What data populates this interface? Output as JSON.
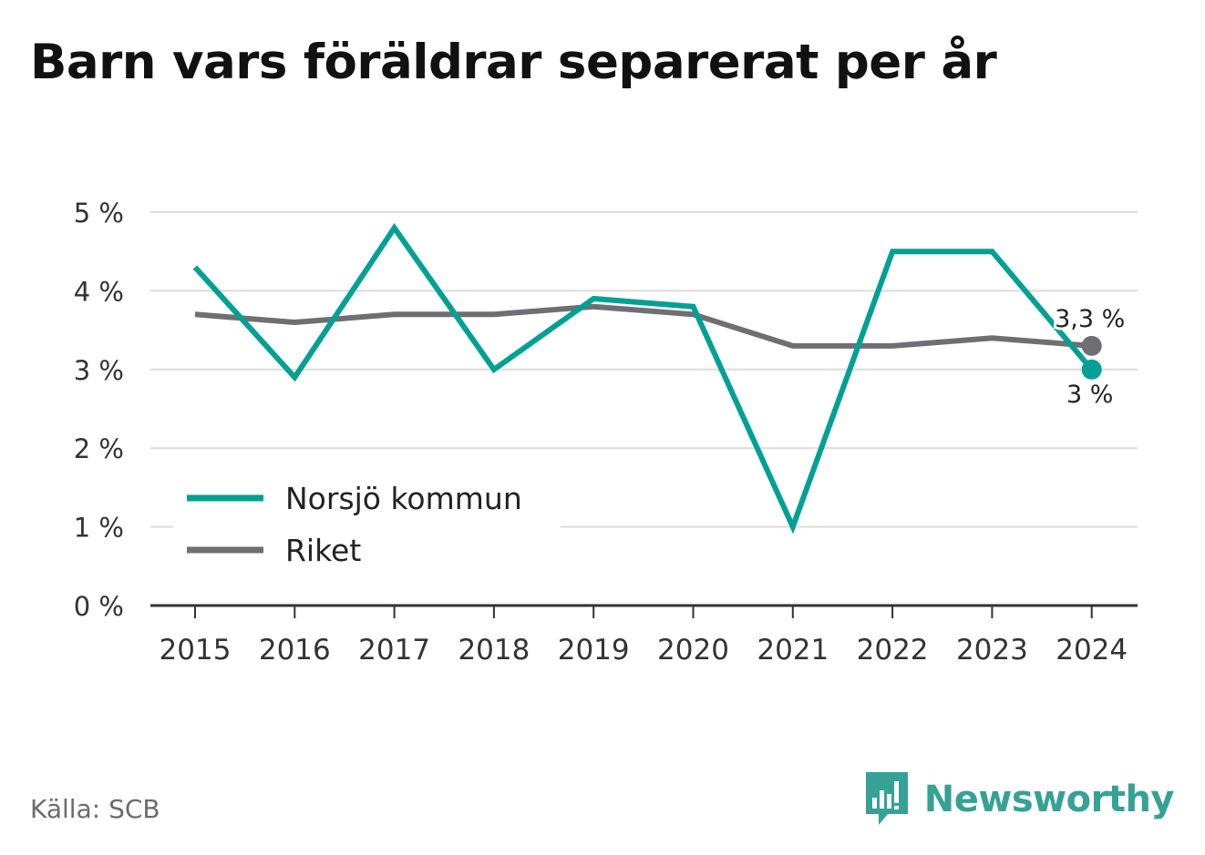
{
  "chart_data": {
    "type": "line",
    "title": "Barn vars föräldrar separerat per år",
    "x": [
      "2015",
      "2016",
      "2017",
      "2018",
      "2019",
      "2020",
      "2021",
      "2022",
      "2023",
      "2024"
    ],
    "series": [
      {
        "name": "Norsjö kommun",
        "color": "#00a194",
        "values": [
          4.3,
          2.9,
          4.8,
          3.0,
          3.9,
          3.8,
          1.0,
          4.5,
          4.5,
          3.0
        ]
      },
      {
        "name": "Riket",
        "color": "#6f6f73",
        "values": [
          3.7,
          3.6,
          3.7,
          3.7,
          3.8,
          3.7,
          3.3,
          3.3,
          3.4,
          3.3
        ]
      }
    ],
    "yticks": [
      "0 %",
      "1 %",
      "2 %",
      "3 %",
      "4 %",
      "5 %"
    ],
    "ylim": [
      0,
      5
    ],
    "grid": true,
    "legend": "bottom-left",
    "end_labels": [
      "3 %",
      "3,3 %"
    ]
  },
  "footer": {
    "source": "Källa: SCB",
    "brand": "Newsworthy",
    "brand_color": "#36a195",
    "logo_icon": "newsworthy-logo-icon"
  }
}
